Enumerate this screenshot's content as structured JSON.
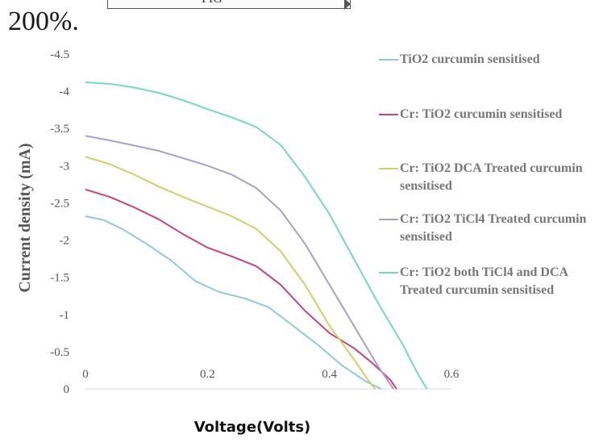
{
  "top_box": {
    "text": "FIG"
  },
  "heading": {
    "text": "200%."
  },
  "chart_data": {
    "type": "line",
    "xlabel": "Voltage(Volts)",
    "ylabel": "Current density (mA)",
    "xlim": [
      0,
      0.6
    ],
    "ylim": [
      0,
      -4.5
    ],
    "x_ticks": [
      {
        "value": 0,
        "label": "0"
      },
      {
        "value": 0.2,
        "label": "0.2"
      },
      {
        "value": 0.4,
        "label": "0.4"
      },
      {
        "value": 0.6,
        "label": "0.6"
      }
    ],
    "y_ticks": [
      {
        "value": 0,
        "label": "0"
      },
      {
        "value": -0.5,
        "label": "-0.5"
      },
      {
        "value": -1,
        "label": "-1"
      },
      {
        "value": -1.5,
        "label": "-1.5"
      },
      {
        "value": -2,
        "label": "-2"
      },
      {
        "value": -2.5,
        "label": "-2.5"
      },
      {
        "value": -3,
        "label": "-3"
      },
      {
        "value": -3.5,
        "label": "-3.5"
      },
      {
        "value": -4,
        "label": "-4"
      },
      {
        "value": -4.5,
        "label": "-4.5"
      }
    ],
    "grid": false,
    "legend_position": "right",
    "series": [
      {
        "name": "TiO2 curcumin sensitised",
        "color": "#8fcbd8",
        "points": [
          [
            0,
            -2.32
          ],
          [
            0.03,
            -2.27
          ],
          [
            0.06,
            -2.15
          ],
          [
            0.1,
            -1.95
          ],
          [
            0.14,
            -1.73
          ],
          [
            0.18,
            -1.45
          ],
          [
            0.22,
            -1.3
          ],
          [
            0.26,
            -1.22
          ],
          [
            0.3,
            -1.1
          ],
          [
            0.34,
            -0.85
          ],
          [
            0.38,
            -0.6
          ],
          [
            0.42,
            -0.32
          ],
          [
            0.46,
            -0.1
          ],
          [
            0.485,
            0
          ]
        ]
      },
      {
        "name": "Cr: TiO2 curcumin sensitised",
        "color": "#d0407a",
        "points": [
          [
            0,
            -2.68
          ],
          [
            0.04,
            -2.58
          ],
          [
            0.08,
            -2.44
          ],
          [
            0.12,
            -2.28
          ],
          [
            0.16,
            -2.08
          ],
          [
            0.2,
            -1.9
          ],
          [
            0.24,
            -1.78
          ],
          [
            0.28,
            -1.65
          ],
          [
            0.32,
            -1.4
          ],
          [
            0.36,
            -1.05
          ],
          [
            0.4,
            -0.75
          ],
          [
            0.44,
            -0.55
          ],
          [
            0.47,
            -0.35
          ],
          [
            0.5,
            -0.12
          ],
          [
            0.51,
            0
          ]
        ]
      },
      {
        "name": "Cr: TiO2 DCA Treated curcumin sensitised",
        "color": "#cfd165",
        "points": [
          [
            0,
            -3.12
          ],
          [
            0.04,
            -3.02
          ],
          [
            0.08,
            -2.88
          ],
          [
            0.12,
            -2.72
          ],
          [
            0.16,
            -2.58
          ],
          [
            0.2,
            -2.45
          ],
          [
            0.24,
            -2.32
          ],
          [
            0.28,
            -2.15
          ],
          [
            0.32,
            -1.85
          ],
          [
            0.36,
            -1.4
          ],
          [
            0.4,
            -0.85
          ],
          [
            0.44,
            -0.4
          ],
          [
            0.465,
            -0.1
          ],
          [
            0.475,
            0
          ]
        ]
      },
      {
        "name": "Cr: TiO2 TiCl4 Treated curcumin sensitised",
        "color": "#a6a1c8",
        "points": [
          [
            0,
            -3.4
          ],
          [
            0.04,
            -3.34
          ],
          [
            0.08,
            -3.27
          ],
          [
            0.12,
            -3.2
          ],
          [
            0.16,
            -3.1
          ],
          [
            0.2,
            -3.0
          ],
          [
            0.24,
            -2.88
          ],
          [
            0.28,
            -2.7
          ],
          [
            0.32,
            -2.4
          ],
          [
            0.36,
            -1.95
          ],
          [
            0.4,
            -1.4
          ],
          [
            0.44,
            -0.85
          ],
          [
            0.48,
            -0.3
          ],
          [
            0.505,
            0
          ]
        ]
      },
      {
        "name": "Cr: TiO2 both TiCl4 and DCA Treated curcumin sensitised",
        "color": "#6fdcc1",
        "points": [
          [
            0,
            -4.12
          ],
          [
            0.04,
            -4.1
          ],
          [
            0.08,
            -4.05
          ],
          [
            0.12,
            -3.98
          ],
          [
            0.16,
            -3.88
          ],
          [
            0.2,
            -3.76
          ],
          [
            0.24,
            -3.65
          ],
          [
            0.28,
            -3.52
          ],
          [
            0.32,
            -3.28
          ],
          [
            0.36,
            -2.85
          ],
          [
            0.4,
            -2.35
          ],
          [
            0.44,
            -1.75
          ],
          [
            0.48,
            -1.15
          ],
          [
            0.52,
            -0.6
          ],
          [
            0.545,
            -0.2
          ],
          [
            0.56,
            0
          ]
        ]
      }
    ]
  }
}
